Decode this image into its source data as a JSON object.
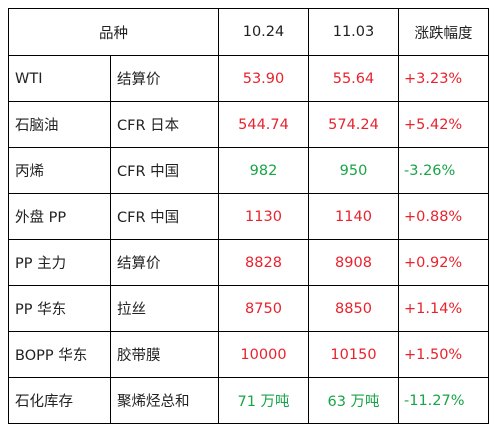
{
  "colors": {
    "up": "#e8232e",
    "down": "#19a447",
    "text": "#222222",
    "border": "#000000"
  },
  "header": {
    "product": "品种",
    "date1": "10.24",
    "date2": "11.03",
    "change": "涨跌幅度"
  },
  "rows": [
    {
      "name": "WTI",
      "spec": "结算价",
      "v1": "53.90",
      "v2": "55.64",
      "change": "+3.23%",
      "trend": "up"
    },
    {
      "name": "石脑油",
      "spec": "CFR 日本",
      "v1": "544.74",
      "v2": "574.24",
      "change": "+5.42%",
      "trend": "up"
    },
    {
      "name": "丙烯",
      "spec": "CFR 中国",
      "v1": "982",
      "v2": "950",
      "change": "-3.26%",
      "trend": "down"
    },
    {
      "name": "外盘 PP",
      "spec": "CFR 中国",
      "v1": "1130",
      "v2": "1140",
      "change": "+0.88%",
      "trend": "up"
    },
    {
      "name": "PP 主力",
      "spec": "结算价",
      "v1": "8828",
      "v2": "8908",
      "change": "+0.92%",
      "trend": "up"
    },
    {
      "name": "PP 华东",
      "spec": "拉丝",
      "v1": "8750",
      "v2": "8850",
      "change": "+1.14%",
      "trend": "up"
    },
    {
      "name": "BOPP 华东",
      "spec": "胶带膜",
      "v1": "10000",
      "v2": "10150",
      "change": "+1.50%",
      "trend": "up"
    },
    {
      "name": "石化库存",
      "spec": "聚烯烃总和",
      "v1": "71 万吨",
      "v2": "63 万吨",
      "change": "-11.27%",
      "trend": "down"
    }
  ]
}
